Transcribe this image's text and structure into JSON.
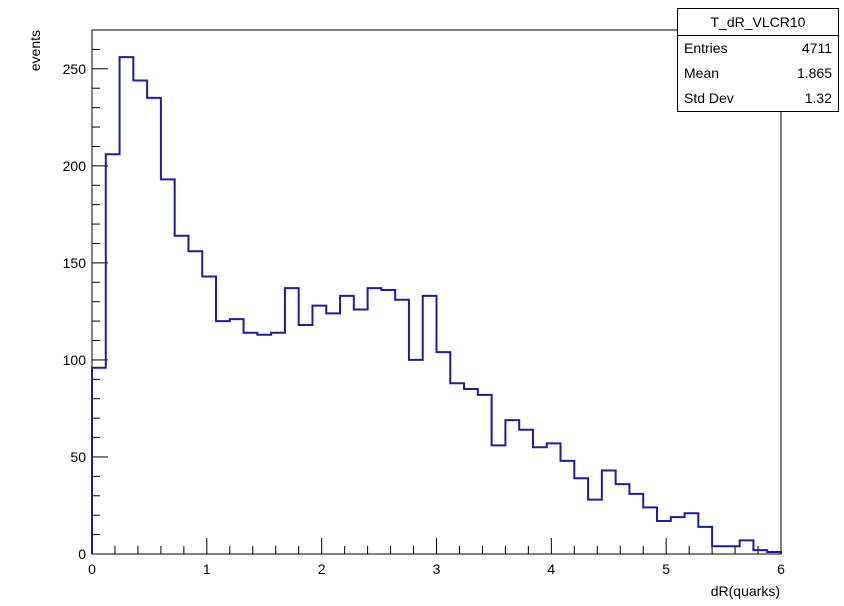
{
  "chart_data": {
    "type": "histogram",
    "title": "",
    "xlabel": "dR(quarks)",
    "ylabel": "events",
    "xlim": [
      0,
      6
    ],
    "ylim": [
      0,
      270
    ],
    "x_ticks": [
      0,
      1,
      2,
      3,
      4,
      5,
      6
    ],
    "y_ticks": [
      0,
      50,
      100,
      150,
      200,
      250
    ],
    "bin_width": 0.12,
    "bin_edges_start": 0.0,
    "values": [
      96,
      206,
      256,
      244,
      235,
      193,
      164,
      156,
      143,
      120,
      121,
      114,
      113,
      114,
      137,
      118,
      128,
      124,
      133,
      126,
      137,
      136,
      131,
      100,
      133,
      104,
      88,
      85,
      82,
      56,
      69,
      64,
      55,
      57,
      48,
      39,
      28,
      43,
      36,
      31,
      24,
      17,
      19,
      21,
      14,
      4,
      4,
      7,
      2,
      1
    ],
    "line_color": "#1c1ca8",
    "stats": {
      "name": "T_dR_VLCR10",
      "entries_label": "Entries",
      "entries": "4711",
      "mean_label": "Mean",
      "mean": "1.865",
      "std_label": "Std Dev",
      "std": "1.32"
    }
  }
}
